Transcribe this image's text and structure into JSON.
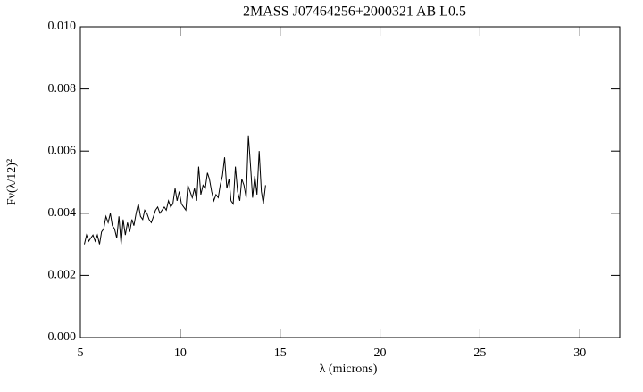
{
  "chart_data": {
    "type": "line",
    "title": "2MASS J07464256+2000321 AB L0.5",
    "xlabel": "λ (microns)",
    "ylabel": "Fν(λ/12)²",
    "xlim": [
      5,
      32
    ],
    "ylim": [
      0,
      0.01
    ],
    "xticks": [
      5,
      10,
      15,
      20,
      25,
      30
    ],
    "yticks": [
      {
        "value": 0,
        "label": "0.000"
      },
      0.002,
      0.004,
      0.006,
      0.008,
      {
        "value": 0.01,
        "label": "0.010"
      }
    ],
    "grid": false,
    "series": [
      {
        "color": "#000000",
        "x": [
          5.2,
          5.31,
          5.42,
          5.52,
          5.63,
          5.74,
          5.85,
          5.96,
          6.06,
          6.17,
          6.28,
          6.39,
          6.5,
          6.6,
          6.71,
          6.82,
          6.93,
          7.04,
          7.14,
          7.25,
          7.36,
          7.47,
          7.58,
          7.68,
          7.79,
          7.9,
          8.01,
          8.12,
          8.22,
          8.33,
          8.44,
          8.55,
          8.66,
          8.76,
          8.87,
          8.98,
          9.09,
          9.2,
          9.3,
          9.41,
          9.52,
          9.63,
          9.74,
          9.84,
          9.95,
          10.06,
          10.17,
          10.28,
          10.38,
          10.49,
          10.6,
          10.71,
          10.82,
          10.92,
          11.03,
          11.14,
          11.25,
          11.36,
          11.46,
          11.57,
          11.68,
          11.79,
          11.9,
          12.0,
          12.11,
          12.22,
          12.33,
          12.44,
          12.54,
          12.65,
          12.76,
          12.87,
          12.98,
          13.08,
          13.19,
          13.3,
          13.41,
          13.52,
          13.62,
          13.73,
          13.84,
          13.95,
          14.06,
          14.16,
          14.27
        ],
        "values": [
          0.003,
          0.0033,
          0.0031,
          0.0032,
          0.0033,
          0.0031,
          0.0033,
          0.003,
          0.0034,
          0.0035,
          0.0039,
          0.0037,
          0.004,
          0.0036,
          0.0035,
          0.0032,
          0.0039,
          0.003,
          0.0038,
          0.0033,
          0.0037,
          0.0034,
          0.0038,
          0.0036,
          0.004,
          0.0043,
          0.0039,
          0.0038,
          0.0041,
          0.004,
          0.0038,
          0.0037,
          0.0039,
          0.0041,
          0.0042,
          0.004,
          0.0041,
          0.0042,
          0.0041,
          0.0044,
          0.0042,
          0.0043,
          0.0048,
          0.0044,
          0.0047,
          0.0043,
          0.0042,
          0.0041,
          0.0049,
          0.0047,
          0.0045,
          0.0048,
          0.0044,
          0.0055,
          0.0046,
          0.0049,
          0.0048,
          0.0053,
          0.0051,
          0.0047,
          0.0044,
          0.0046,
          0.0045,
          0.0049,
          0.0052,
          0.0058,
          0.0048,
          0.0051,
          0.0044,
          0.0043,
          0.0055,
          0.0047,
          0.0044,
          0.0051,
          0.0049,
          0.0045,
          0.0065,
          0.0055,
          0.0045,
          0.0052,
          0.0046,
          0.006,
          0.0047,
          0.0043,
          0.0049
        ]
      }
    ]
  }
}
